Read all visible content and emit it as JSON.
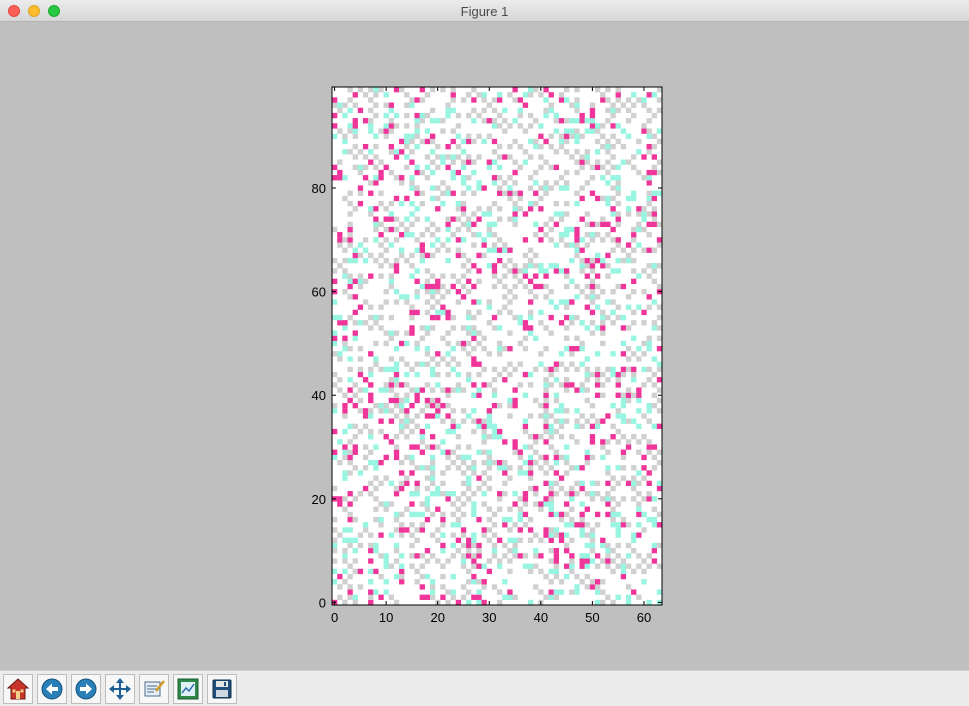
{
  "window": {
    "title": "Figure 1"
  },
  "toolbar": {
    "buttons": [
      {
        "name": "home-button",
        "icon": "home-icon"
      },
      {
        "name": "back-button",
        "icon": "back-arrow-icon"
      },
      {
        "name": "forward-button",
        "icon": "forward-arrow-icon"
      },
      {
        "name": "pan-button",
        "icon": "move-arrows-icon"
      },
      {
        "name": "zoom-button",
        "icon": "zoom-rect-icon"
      },
      {
        "name": "configure-subplots-button",
        "icon": "subplots-icon"
      },
      {
        "name": "save-button",
        "icon": "floppy-disk-icon"
      }
    ]
  },
  "chart_data": {
    "type": "heatmap",
    "title": "",
    "xlabel": "",
    "ylabel": "",
    "xlim": [
      0,
      63
    ],
    "ylim": [
      0,
      99
    ],
    "xticks": [
      "0",
      "10",
      "20",
      "30",
      "40",
      "50",
      "60"
    ],
    "yticks": [
      "0",
      "20",
      "40",
      "60",
      "80"
    ],
    "grid": false,
    "cell_categories": [
      "empty",
      "gray",
      "cyan",
      "magenta"
    ],
    "colors": {
      "empty": "#ffffff",
      "gray": "#d0d0d0",
      "cyan": "#98f5e1",
      "magenta": "#f0359a"
    },
    "approx_fractions": {
      "empty": 0.46,
      "gray": 0.38,
      "cyan": 0.09,
      "magenta": 0.07
    }
  }
}
